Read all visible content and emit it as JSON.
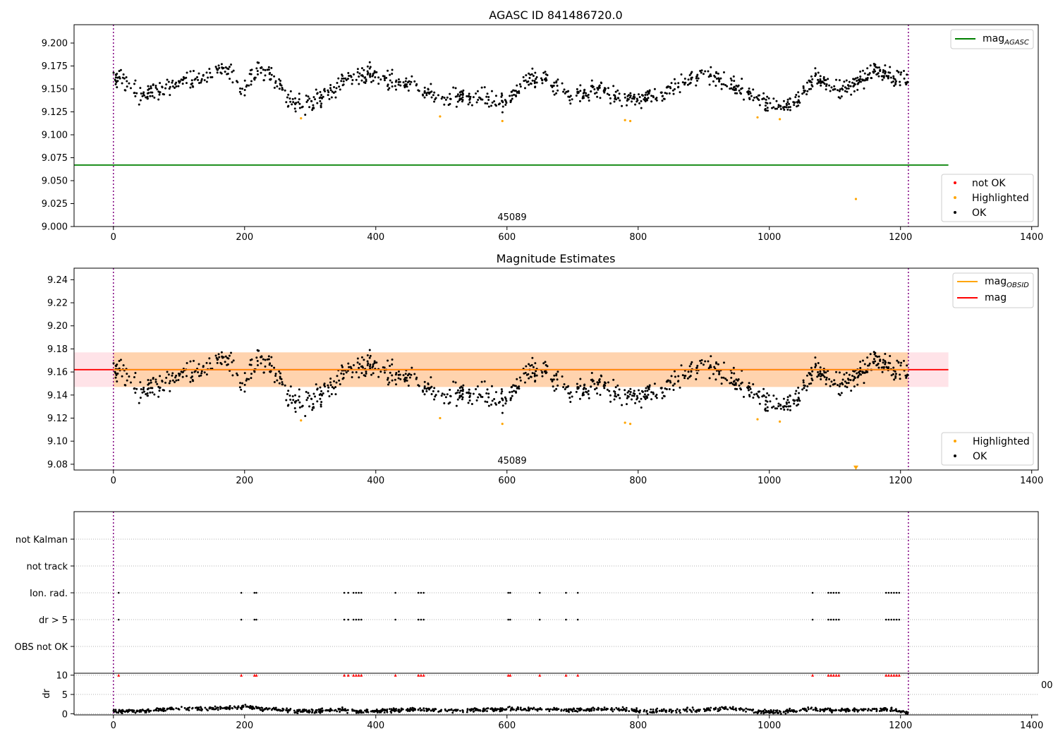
{
  "chart_data": [
    {
      "type": "scatter",
      "title": "AGASC ID 841486720.0",
      "xlim": [
        -60,
        1410
      ],
      "ylim": [
        9.0,
        9.22
      ],
      "x_ticks": [
        0,
        200,
        400,
        600,
        800,
        1000,
        1200,
        1400
      ],
      "y_ticks": [
        9.0,
        9.025,
        9.05,
        9.075,
        9.1,
        9.125,
        9.15,
        9.175,
        9.2
      ],
      "y_tick_labels": [
        "9.000",
        "9.025",
        "9.050",
        "9.075",
        "9.100",
        "9.125",
        "9.150",
        "9.175",
        "9.200"
      ],
      "obsid_label": "45089",
      "obsid_boundaries": [
        0,
        1212
      ],
      "mag_agasc": 9.067,
      "legend_top": [
        {
          "label": "mag",
          "sub": "AGASC",
          "color": "#008000",
          "kind": "line"
        }
      ],
      "legend_bottom": [
        {
          "label": "not OK",
          "color": "#ff0000",
          "kind": "dot"
        },
        {
          "label": "Highlighted",
          "color": "#ffa500",
          "kind": "dot"
        },
        {
          "label": "OK",
          "color": "#000000",
          "kind": "dot"
        }
      ],
      "highlighted_points": [
        [
          286,
          9.118
        ],
        [
          498,
          9.12
        ],
        [
          593,
          9.115
        ],
        [
          780,
          9.116
        ],
        [
          788,
          9.115
        ],
        [
          982,
          9.119
        ],
        [
          1016,
          9.117
        ],
        [
          1132,
          9.03
        ]
      ],
      "ok_series_profile": [
        [
          0,
          9.165
        ],
        [
          20,
          9.155
        ],
        [
          40,
          9.143
        ],
        [
          70,
          9.15
        ],
        [
          100,
          9.157
        ],
        [
          130,
          9.16
        ],
        [
          160,
          9.172
        ],
        [
          180,
          9.166
        ],
        [
          195,
          9.145
        ],
        [
          220,
          9.172
        ],
        [
          250,
          9.158
        ],
        [
          265,
          9.14
        ],
        [
          290,
          9.13
        ],
        [
          320,
          9.143
        ],
        [
          360,
          9.16
        ],
        [
          390,
          9.168
        ],
        [
          420,
          9.158
        ],
        [
          460,
          9.155
        ],
        [
          500,
          9.135
        ],
        [
          530,
          9.142
        ],
        [
          570,
          9.14
        ],
        [
          600,
          9.135
        ],
        [
          630,
          9.16
        ],
        [
          660,
          9.16
        ],
        [
          700,
          9.14
        ],
        [
          740,
          9.152
        ],
        [
          770,
          9.14
        ],
        [
          800,
          9.138
        ],
        [
          840,
          9.145
        ],
        [
          880,
          9.162
        ],
        [
          900,
          9.17
        ],
        [
          930,
          9.16
        ],
        [
          970,
          9.145
        ],
        [
          1000,
          9.133
        ],
        [
          1040,
          9.135
        ],
        [
          1070,
          9.165
        ],
        [
          1100,
          9.15
        ],
        [
          1130,
          9.155
        ],
        [
          1160,
          9.172
        ],
        [
          1190,
          9.16
        ],
        [
          1212,
          9.162
        ]
      ],
      "ok_scatter_spread": 0.009
    },
    {
      "type": "scatter",
      "title": "Magnitude Estimates",
      "xlim": [
        -60,
        1410
      ],
      "ylim": [
        9.075,
        9.25
      ],
      "x_ticks": [
        0,
        200,
        400,
        600,
        800,
        1000,
        1200,
        1400
      ],
      "y_ticks": [
        9.08,
        9.1,
        9.12,
        9.14,
        9.16,
        9.18,
        9.2,
        9.22,
        9.24
      ],
      "y_tick_labels": [
        "9.08",
        "9.10",
        "9.12",
        "9.14",
        "9.16",
        "9.18",
        "9.20",
        "9.22",
        "9.24"
      ],
      "obsid_label": "45089",
      "obsid_boundaries": [
        0,
        1212
      ],
      "mag": 9.162,
      "mag_band": [
        9.147,
        9.177
      ],
      "mag_obsid": 9.162,
      "legend_top": [
        {
          "label": "mag",
          "sub": "OBSID",
          "color": "#ffa500",
          "kind": "line"
        },
        {
          "label": "mag",
          "sub": "",
          "color": "#ff0000",
          "kind": "line"
        }
      ],
      "legend_bottom": [
        {
          "label": "Highlighted",
          "color": "#ffa500",
          "kind": "dot"
        },
        {
          "label": "OK",
          "color": "#000000",
          "kind": "dot"
        }
      ],
      "highlighted_points": [
        [
          286,
          9.118
        ],
        [
          498,
          9.12
        ],
        [
          593,
          9.115
        ],
        [
          780,
          9.116
        ],
        [
          788,
          9.115
        ],
        [
          982,
          9.119
        ],
        [
          1016,
          9.117
        ]
      ],
      "offscale_marker": [
        1132,
        9.077
      ]
    },
    {
      "type": "scatter",
      "title": "",
      "xlim": [
        -60,
        1410
      ],
      "categories": [
        "not Kalman",
        "not track",
        "Ion. rad.",
        "dr > 5",
        "OBS not OK"
      ],
      "flag_x": [
        8,
        195,
        215,
        218,
        352,
        358,
        366,
        370,
        374,
        378,
        430,
        465,
        469,
        473,
        602,
        605,
        650,
        690,
        708,
        1066,
        1090,
        1094,
        1098,
        1102,
        1106,
        1178,
        1182,
        1186,
        1190,
        1194,
        1198
      ],
      "flagged_rows": [
        "Ion. rad.",
        "dr > 5"
      ],
      "obsid_boundaries": [
        0,
        1212
      ]
    },
    {
      "type": "line",
      "title": "",
      "ylabel": "dr",
      "xlim": [
        -60,
        1410
      ],
      "ylim": [
        -0.3,
        10.5
      ],
      "x_ticks": [
        0,
        200,
        400,
        600,
        800,
        1000,
        1200,
        1400
      ],
      "x_tick_labels": [
        "0",
        "200",
        "400",
        "600",
        "800",
        "1000",
        "1200",
        "1400"
      ],
      "y_ticks": [
        0,
        5,
        10
      ],
      "y_tick_labels": [
        "0",
        "5",
        "10"
      ],
      "clipped_tick_label": "00",
      "dr_profile": [
        [
          0,
          0.8
        ],
        [
          40,
          0.6
        ],
        [
          100,
          1.4
        ],
        [
          150,
          1.3
        ],
        [
          200,
          1.7
        ],
        [
          260,
          0.9
        ],
        [
          300,
          0.7
        ],
        [
          340,
          1.0
        ],
        [
          380,
          0.6
        ],
        [
          420,
          0.9
        ],
        [
          470,
          1.2
        ],
        [
          520,
          0.8
        ],
        [
          580,
          1.0
        ],
        [
          640,
          1.3
        ],
        [
          700,
          1.0
        ],
        [
          760,
          1.2
        ],
        [
          820,
          0.6
        ],
        [
          860,
          0.8
        ],
        [
          900,
          1.0
        ],
        [
          940,
          1.5
        ],
        [
          980,
          0.6
        ],
        [
          1020,
          0.5
        ],
        [
          1060,
          1.2
        ],
        [
          1100,
          0.9
        ],
        [
          1150,
          1.0
        ],
        [
          1180,
          1.2
        ],
        [
          1212,
          0.2
        ]
      ],
      "clipped_points_value": 10,
      "clipped_x": [
        8,
        195,
        215,
        218,
        352,
        358,
        366,
        370,
        374,
        378,
        430,
        465,
        469,
        473,
        602,
        605,
        650,
        690,
        708,
        1066,
        1090,
        1094,
        1098,
        1102,
        1106,
        1178,
        1182,
        1186,
        1190,
        1194,
        1198
      ],
      "obsid_boundaries": [
        0,
        1212
      ]
    }
  ]
}
